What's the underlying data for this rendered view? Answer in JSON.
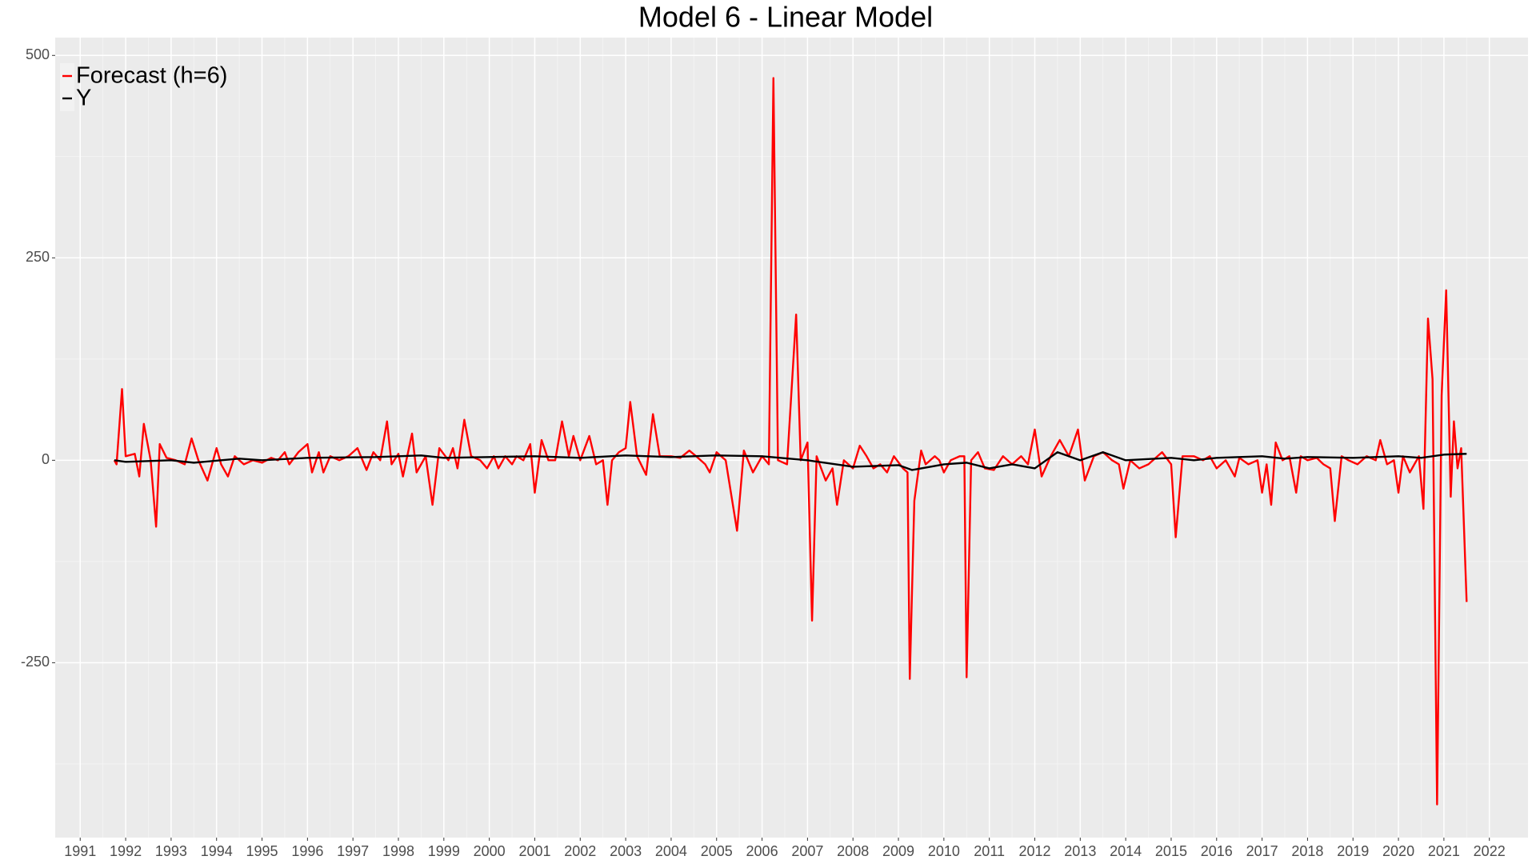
{
  "chart_data": {
    "type": "line",
    "title": "Model 6 - Linear Model",
    "xlim": [
      1990.45,
      2022.85
    ],
    "ylim": [
      -466,
      522
    ],
    "xticks": [
      1991,
      1992,
      1993,
      1994,
      1995,
      1996,
      1997,
      1998,
      1999,
      2000,
      2001,
      2002,
      2003,
      2004,
      2005,
      2006,
      2007,
      2008,
      2009,
      2010,
      2011,
      2012,
      2013,
      2014,
      2015,
      2016,
      2017,
      2018,
      2019,
      2020,
      2021,
      2022
    ],
    "yticks": [
      -250,
      0,
      250,
      500
    ],
    "grid": true,
    "legend": "top-left",
    "series": [
      {
        "name": "Forecast (h=6)",
        "color": "#ff0000",
        "x": [
          1991.75,
          1991.8,
          1991.92,
          1992.0,
          1992.2,
          1992.3,
          1992.4,
          1992.55,
          1992.67,
          1992.75,
          1992.9,
          1993.1,
          1993.3,
          1993.45,
          1993.6,
          1993.8,
          1994.0,
          1994.1,
          1994.25,
          1994.4,
          1994.6,
          1994.8,
          1995.0,
          1995.2,
          1995.35,
          1995.5,
          1995.6,
          1995.8,
          1996.0,
          1996.1,
          1996.25,
          1996.35,
          1996.5,
          1996.7,
          1996.9,
          1997.1,
          1997.3,
          1997.45,
          1997.6,
          1997.75,
          1997.85,
          1998.0,
          1998.1,
          1998.3,
          1998.4,
          1998.6,
          1998.75,
          1998.9,
          1999.1,
          1999.2,
          1999.3,
          1999.45,
          1999.6,
          1999.8,
          1999.95,
          2000.1,
          2000.2,
          2000.35,
          2000.5,
          2000.6,
          2000.75,
          2000.9,
          2001.0,
          2001.15,
          2001.3,
          2001.45,
          2001.6,
          2001.75,
          2001.85,
          2002.0,
          2002.2,
          2002.35,
          2002.5,
          2002.6,
          2002.7,
          2002.85,
          2003.0,
          2003.1,
          2003.25,
          2003.45,
          2003.6,
          2003.75,
          2004.0,
          2004.2,
          2004.4,
          2004.55,
          2004.75,
          2004.85,
          2005.0,
          2005.2,
          2005.45,
          2005.6,
          2005.8,
          2006.0,
          2006.15,
          2006.25,
          2006.35,
          2006.55,
          2006.75,
          2006.85,
          2007.0,
          2007.1,
          2007.2,
          2007.4,
          2007.55,
          2007.65,
          2007.8,
          2008.0,
          2008.15,
          2008.3,
          2008.45,
          2008.6,
          2008.75,
          2008.9,
          2009.1,
          2009.2,
          2009.25,
          2009.35,
          2009.5,
          2009.6,
          2009.8,
          2009.9,
          2010.0,
          2010.15,
          2010.35,
          2010.45,
          2010.5,
          2010.6,
          2010.75,
          2010.9,
          2011.1,
          2011.3,
          2011.5,
          2011.7,
          2011.85,
          2012.0,
          2012.15,
          2012.35,
          2012.55,
          2012.75,
          2012.95,
          2013.1,
          2013.3,
          2013.5,
          2013.7,
          2013.85,
          2013.95,
          2014.1,
          2014.3,
          2014.5,
          2014.7,
          2014.8,
          2015.0,
          2015.1,
          2015.25,
          2015.5,
          2015.7,
          2015.85,
          2016.0,
          2016.2,
          2016.4,
          2016.5,
          2016.7,
          2016.9,
          2017.0,
          2017.1,
          2017.2,
          2017.3,
          2017.45,
          2017.6,
          2017.75,
          2017.85,
          2018.0,
          2018.2,
          2018.35,
          2018.5,
          2018.6,
          2018.75,
          2018.9,
          2019.1,
          2019.3,
          2019.5,
          2019.6,
          2019.75,
          2019.9,
          2020.0,
          2020.1,
          2020.25,
          2020.45,
          2020.55,
          2020.65,
          2020.75,
          2020.85,
          2020.95,
          2021.05,
          2021.15,
          2021.22,
          2021.3,
          2021.38,
          2021.5
        ],
        "values": [
          0,
          -5,
          88,
          5,
          8,
          -20,
          45,
          0,
          -82,
          20,
          3,
          0,
          -5,
          27,
          0,
          -25,
          15,
          -5,
          -20,
          5,
          -5,
          0,
          -3,
          3,
          0,
          10,
          -5,
          10,
          20,
          -15,
          10,
          -15,
          5,
          0,
          5,
          15,
          -12,
          10,
          0,
          48,
          -5,
          8,
          -20,
          33,
          -15,
          5,
          -55,
          15,
          0,
          15,
          -10,
          50,
          5,
          0,
          -10,
          5,
          -10,
          5,
          -5,
          5,
          0,
          20,
          -40,
          25,
          0,
          0,
          48,
          5,
          30,
          0,
          30,
          -5,
          0,
          -55,
          0,
          10,
          15,
          72,
          5,
          -18,
          57,
          5,
          5,
          3,
          12,
          5,
          -5,
          -15,
          10,
          0,
          -87,
          12,
          -15,
          5,
          -5,
          472,
          0,
          -5,
          180,
          0,
          22,
          -198,
          5,
          -25,
          -10,
          -55,
          0,
          -10,
          18,
          5,
          -10,
          -5,
          -15,
          5,
          -10,
          -15,
          -270,
          -50,
          12,
          -5,
          5,
          0,
          -15,
          0,
          5,
          5,
          -268,
          0,
          10,
          -10,
          -12,
          5,
          -5,
          5,
          -5,
          38,
          -20,
          5,
          25,
          5,
          38,
          -25,
          5,
          10,
          0,
          -5,
          -35,
          0,
          -10,
          -5,
          5,
          10,
          -5,
          -95,
          5,
          5,
          0,
          5,
          -10,
          0,
          -20,
          3,
          -5,
          0,
          -40,
          -5,
          -55,
          22,
          0,
          5,
          -40,
          5,
          0,
          3,
          -5,
          -10,
          -75,
          5,
          0,
          -5,
          5,
          0,
          25,
          -5,
          0,
          -40,
          5,
          -15,
          5,
          -60,
          175,
          100,
          -425,
          80,
          210,
          -45,
          48,
          -10,
          15,
          -175
        ]
      },
      {
        "name": "Y",
        "color": "#000000",
        "x": [
          1991.75,
          1992,
          1993,
          1993.5,
          1994.5,
          1995,
          1996,
          1997.5,
          1998.5,
          1999,
          2000,
          2001,
          2002,
          2003,
          2004,
          2005,
          2006,
          2007,
          2008,
          2009,
          2009.3,
          2010,
          2010.5,
          2011,
          2011.5,
          2012,
          2012.5,
          2013,
          2013.5,
          2014,
          2015,
          2015.5,
          2016,
          2017,
          2017.5,
          2018,
          2019,
          2020,
          2020.5,
          2021,
          2021.5
        ],
        "values": [
          0,
          -2,
          0,
          -3,
          2,
          0,
          3,
          4,
          6,
          3,
          4,
          5,
          3,
          6,
          4,
          6,
          5,
          0,
          -8,
          -6,
          -12,
          -5,
          -3,
          -10,
          -5,
          -10,
          10,
          0,
          10,
          0,
          3,
          0,
          3,
          5,
          2,
          4,
          3,
          5,
          3,
          7,
          8
        ]
      }
    ]
  }
}
